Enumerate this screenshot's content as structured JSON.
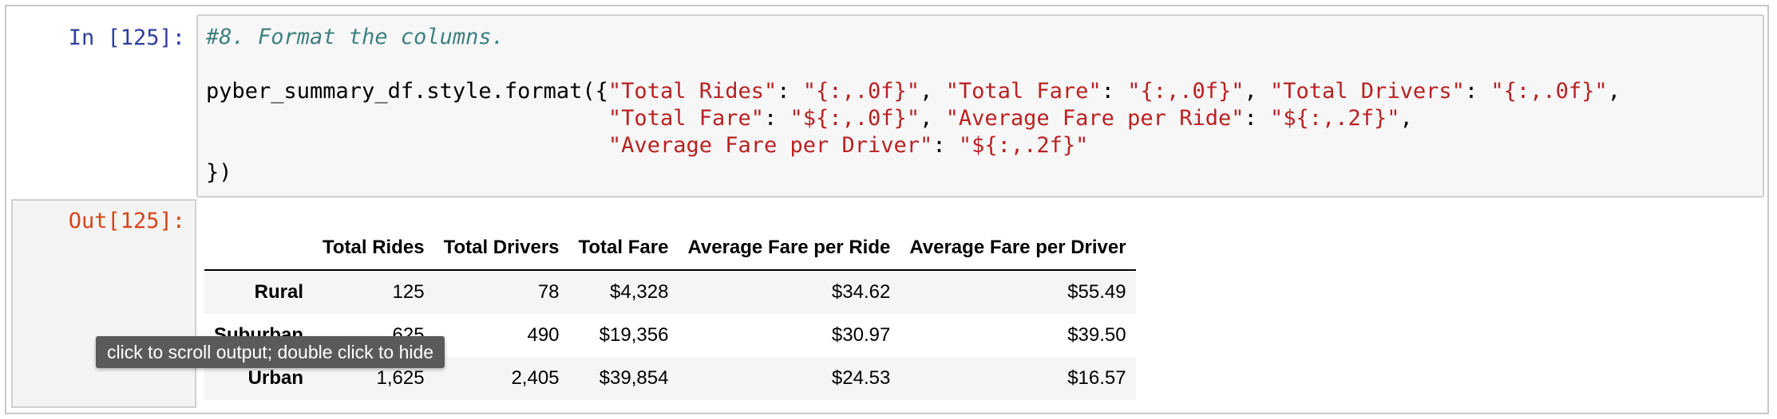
{
  "input_prompt": "In [125]:",
  "output_prompt": "Out[125]:",
  "code": {
    "comment": "#8. Format the columns.",
    "line2_prefix": "pyber_summary_df.style.format({",
    "line2_s1": "\"Total Rides\"",
    "line2_s2": "\"{:,.0f}\"",
    "line2_s3": "\"Total Fare\"",
    "line2_s4": "\"{:,.0f}\"",
    "line2_s5": "\"Total Drivers\"",
    "line2_s6": "\"{:,.0f}\"",
    "line3_indent": "                               ",
    "line3_s1": "\"Total Fare\"",
    "line3_s2": "\"${:,.0f}\"",
    "line3_s3": "\"Average Fare per Ride\"",
    "line3_s4": "\"${:,.2f}\"",
    "line4_indent": "                               ",
    "line4_s1": "\"Average Fare per Driver\"",
    "line4_s2": "\"${:,.2f}\"",
    "line5": "})"
  },
  "table": {
    "columns": [
      "Total Rides",
      "Total Drivers",
      "Total Fare",
      "Average Fare per Ride",
      "Average Fare per Driver"
    ],
    "rows": [
      {
        "index": "Rural",
        "values": [
          "125",
          "78",
          "$4,328",
          "$34.62",
          "$55.49"
        ]
      },
      {
        "index": "Suburban",
        "values": [
          "625",
          "490",
          "$19,356",
          "$30.97",
          "$39.50"
        ]
      },
      {
        "index": "Urban",
        "values": [
          "1,625",
          "2,405",
          "$39,854",
          "$24.53",
          "$16.57"
        ]
      }
    ]
  },
  "tooltip": "click to scroll output; double click to hide",
  "colors": {
    "cell_selected_bar": "#42a5f5",
    "input_prompt": "#303f9f",
    "output_prompt": "#d84315",
    "comment": "#408080",
    "string": "#ba2121"
  }
}
